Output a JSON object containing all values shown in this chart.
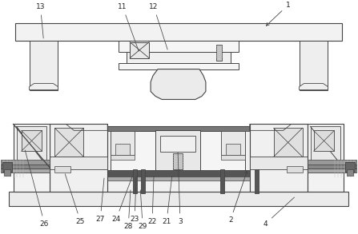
{
  "bg_color": "#ffffff",
  "lc": "#888888",
  "dc": "#444444",
  "gc": "#bbbbbb",
  "label_color": "#222222",
  "fig_width": 4.47,
  "fig_height": 2.93,
  "dpi": 100
}
